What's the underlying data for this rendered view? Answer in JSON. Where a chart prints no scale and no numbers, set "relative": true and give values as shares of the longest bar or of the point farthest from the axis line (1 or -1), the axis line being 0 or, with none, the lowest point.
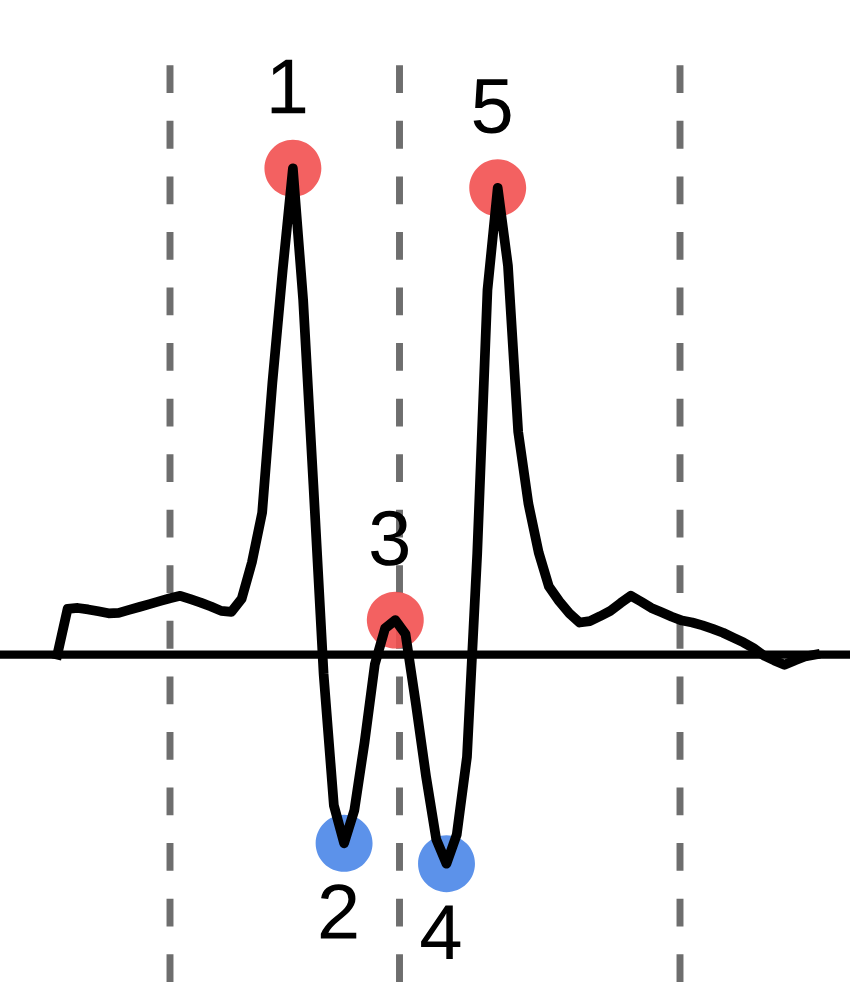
{
  "chart_data": {
    "type": "line",
    "relative": true,
    "categories": [
      null,
      null,
      null,
      null,
      null,
      null,
      null,
      null,
      null,
      null,
      null,
      null,
      null,
      null,
      null,
      null,
      null,
      null,
      null,
      null,
      null,
      null,
      null,
      null,
      null,
      null,
      null,
      null,
      null,
      null,
      null,
      null,
      null,
      null,
      null,
      null,
      null,
      null,
      null,
      null,
      null,
      null,
      null,
      null,
      null,
      null,
      null,
      null,
      null,
      null,
      null,
      null,
      null,
      null,
      null,
      null,
      null,
      null,
      null,
      null,
      null,
      null,
      null,
      null,
      null,
      null,
      null,
      null,
      null,
      null,
      null,
      null,
      null,
      null,
      null
    ],
    "series": [
      {
        "color": "#000000",
        "values": [
          0,
          0.094,
          0.096,
          0.093,
          0.089,
          0.085,
          0.086,
          0.092,
          0.098,
          0.104,
          0.11,
          0.116,
          0.121,
          0.114,
          0.107,
          0.099,
          0.09,
          0.088,
          0.115,
          0.19,
          0.292,
          0.56,
          0.79,
          1,
          0.73,
          0.35,
          -0.04,
          -0.31,
          -0.388,
          -0.32,
          -0.18,
          -0.02,
          0.054,
          0.071,
          0.042,
          -0.1,
          -0.25,
          -0.38,
          -0.43,
          -0.37,
          -0.21,
          0.208,
          0.75,
          0.96,
          0.8,
          0.458,
          0.31,
          0.21,
          0.14,
          0.11,
          0.085,
          0.066,
          0.069,
          0.079,
          0.09,
          0.106,
          0.121,
          0.109,
          0.096,
          0.087,
          0.078,
          0.07,
          0.066,
          0.06,
          0.053,
          0.045,
          0.035,
          0.025,
          0.013,
          -0.002,
          -0.012,
          -0.021,
          -0.012,
          -0.004,
          0
        ]
      }
    ],
    "grid": "x",
    "annotations": [
      {
        "text": "1",
        "y": 1
      },
      {
        "text": "2",
        "y": -0.388
      },
      {
        "text": "3",
        "y": 0.071
      },
      {
        "text": "4",
        "y": -0.43
      },
      {
        "text": "5",
        "y": 0.96
      }
    ]
  }
}
